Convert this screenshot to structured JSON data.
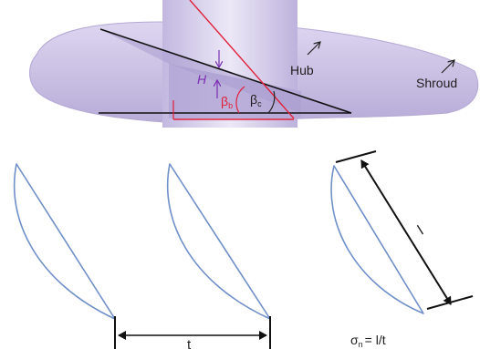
{
  "labels": {
    "hub": "Hub",
    "shroud": "Shroud",
    "h": "H",
    "beta_b": "β",
    "beta_b_sub": "b",
    "beta_c": "β",
    "beta_c_sub": "c",
    "pitch": "t",
    "chord": "l",
    "solidity_symbol": "σ",
    "solidity_sub": "n",
    "solidity_eq": "= l/t"
  },
  "colors": {
    "impeller": "#c9c0e3",
    "impeller_dark": "#a89ccc",
    "blade": "#6f8fc8",
    "red_line": "#e0223a",
    "purple": "#7a2fb0",
    "black": "#111111"
  }
}
